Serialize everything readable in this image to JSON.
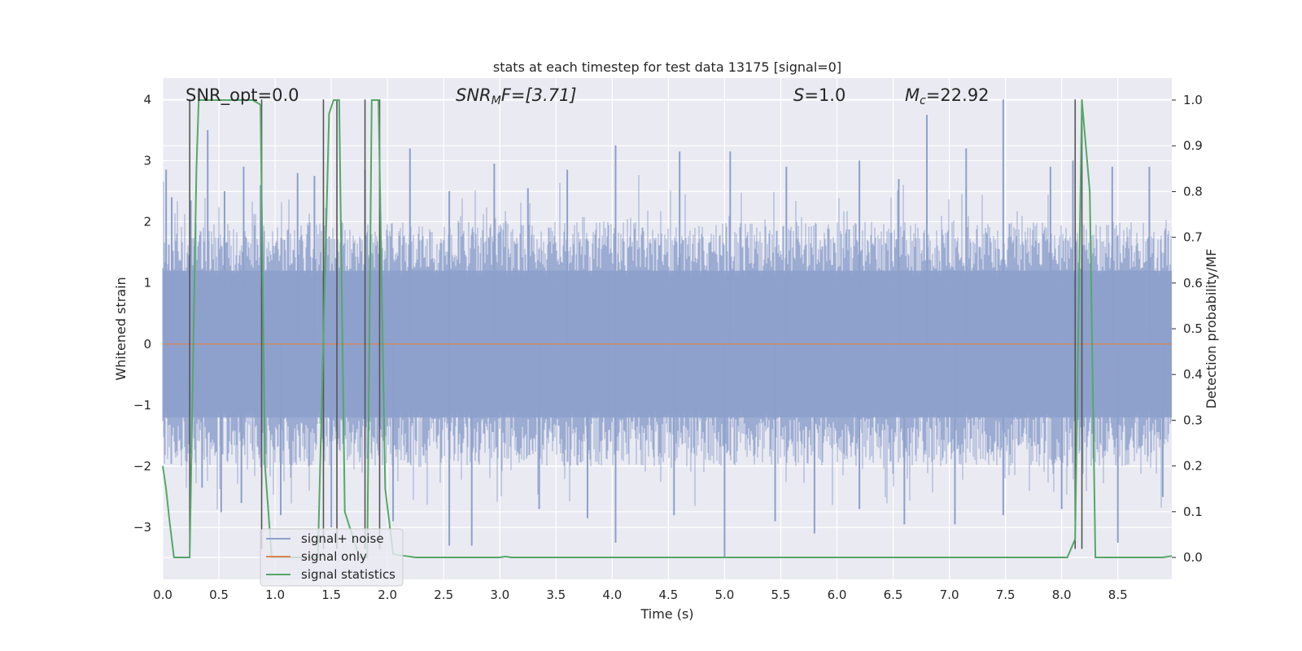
{
  "chart_data": {
    "type": "line",
    "title": "stats at each timestep for test data 13175 [signal=0]",
    "xlabel": "Time (s)",
    "ylabel": "Whitened strain",
    "ylabel_right": "Detection probability/MF",
    "xlim": [
      0.0,
      8.98
    ],
    "ylim": [
      -3.85,
      4.35
    ],
    "ylim_right": [
      -0.048,
      1.048
    ],
    "x_ticks": [
      "0.0",
      "0.5",
      "1.0",
      "1.5",
      "2.0",
      "2.5",
      "3.0",
      "3.5",
      "4.0",
      "4.5",
      "5.0",
      "5.5",
      "6.0",
      "6.5",
      "7.0",
      "7.5",
      "8.0",
      "8.5"
    ],
    "y_ticks": [
      "4",
      "3",
      "2",
      "1",
      "0",
      "−1",
      "−2",
      "−3"
    ],
    "y_ticks_right": [
      "1.0",
      "0.9",
      "0.8",
      "0.7",
      "0.6",
      "0.5",
      "0.4",
      "0.3",
      "0.2",
      "0.1",
      "0.0"
    ],
    "grid": true,
    "legend_placement": "lower-left",
    "annotations": {
      "snr_opt": "SNR_opt=0.0",
      "snr_mf_main": "SNR",
      "snr_mf_sub": "M",
      "snr_mf_rest": "F=[3.71]",
      "s_main": "S",
      "s_rest": "=1.0",
      "mc_main": "M",
      "mc_sub": "c",
      "mc_rest": "=22.92"
    },
    "series": [
      {
        "name": "signal+ noise",
        "color": "#8da0cb",
        "axis": "left",
        "description": "dense whitened noise trace, roughly +/-1.2 core band with spikes up to about 4 and down to about -3.5",
        "spikes": [
          {
            "x": 0.03,
            "y": 2.85
          },
          {
            "x": 0.08,
            "y": 2.4
          },
          {
            "x": 0.25,
            "y": 2.35
          },
          {
            "x": 0.4,
            "y": 3.5
          },
          {
            "x": 0.55,
            "y": 2.5
          },
          {
            "x": 0.72,
            "y": 2.9
          },
          {
            "x": 0.87,
            "y": 2.6
          },
          {
            "x": 1.2,
            "y": 2.8
          },
          {
            "x": 1.35,
            "y": 2.75
          },
          {
            "x": 1.8,
            "y": 2.85
          },
          {
            "x": 2.2,
            "y": 3.2
          },
          {
            "x": 2.55,
            "y": 2.5
          },
          {
            "x": 2.95,
            "y": 2.95
          },
          {
            "x": 3.25,
            "y": 2.55
          },
          {
            "x": 3.6,
            "y": 2.85
          },
          {
            "x": 4.03,
            "y": 3.25
          },
          {
            "x": 4.6,
            "y": 3.15
          },
          {
            "x": 5.05,
            "y": 3.15
          },
          {
            "x": 5.55,
            "y": 2.9
          },
          {
            "x": 6.2,
            "y": 3.0
          },
          {
            "x": 6.55,
            "y": 2.7
          },
          {
            "x": 6.8,
            "y": 3.75
          },
          {
            "x": 7.15,
            "y": 3.2
          },
          {
            "x": 7.48,
            "y": 4.0
          },
          {
            "x": 7.9,
            "y": 2.9
          },
          {
            "x": 8.1,
            "y": 3.0
          },
          {
            "x": 8.45,
            "y": 2.9
          },
          {
            "x": 8.78,
            "y": 2.9
          },
          {
            "x": 0.35,
            "y": -2.35
          },
          {
            "x": 0.52,
            "y": -2.75
          },
          {
            "x": 0.7,
            "y": -2.6
          },
          {
            "x": 1.05,
            "y": -2.8
          },
          {
            "x": 1.5,
            "y": -3.0
          },
          {
            "x": 2.05,
            "y": -2.9
          },
          {
            "x": 2.55,
            "y": -3.3
          },
          {
            "x": 2.75,
            "y": -3.3
          },
          {
            "x": 3.35,
            "y": -2.7
          },
          {
            "x": 3.78,
            "y": -2.85
          },
          {
            "x": 4.03,
            "y": -3.25
          },
          {
            "x": 4.55,
            "y": -2.8
          },
          {
            "x": 5.0,
            "y": -3.5
          },
          {
            "x": 5.45,
            "y": -2.9
          },
          {
            "x": 5.8,
            "y": -3.1
          },
          {
            "x": 6.2,
            "y": -2.7
          },
          {
            "x": 6.6,
            "y": -2.95
          },
          {
            "x": 7.05,
            "y": -2.95
          },
          {
            "x": 7.48,
            "y": -2.8
          },
          {
            "x": 8.0,
            "y": -2.7
          },
          {
            "x": 8.5,
            "y": -3.25
          },
          {
            "x": 8.9,
            "y": -2.5
          }
        ]
      },
      {
        "name": "signal only",
        "color": "#dd8452",
        "axis": "left",
        "x": [
          0.0,
          8.98
        ],
        "y": [
          0.0,
          0.0
        ]
      },
      {
        "name": "signal statistics",
        "color": "#55a868",
        "axis": "right",
        "x": [
          0.0,
          0.03,
          0.06,
          0.1,
          0.24,
          0.3,
          0.32,
          0.8,
          0.87,
          0.91,
          0.97,
          1.0,
          1.38,
          1.48,
          1.52,
          1.57,
          1.62,
          1.75,
          1.82,
          1.86,
          1.92,
          1.98,
          2.05,
          2.1,
          2.25,
          3.0,
          3.05,
          3.1,
          8.05,
          8.12,
          8.18,
          8.25,
          8.3,
          8.35,
          8.9,
          8.98
        ],
        "y": [
          0.2,
          0.15,
          0.08,
          0.0,
          0.0,
          0.85,
          1.0,
          1.0,
          0.99,
          0.2,
          0.0,
          0.0,
          0.0,
          0.97,
          1.0,
          1.0,
          0.1,
          0.0,
          0.0,
          1.0,
          1.0,
          0.15,
          0.008,
          0.005,
          0.0,
          0.0,
          0.002,
          0.0,
          0.0,
          0.04,
          1.0,
          0.8,
          0.0,
          0.0,
          0.0,
          0.003
        ]
      }
    ],
    "vertical_markers": {
      "color": "#555555",
      "x": [
        0.24,
        0.88,
        1.43,
        1.55,
        1.8,
        1.93,
        8.12,
        8.18
      ],
      "y_top": 4.0,
      "y_bottom": -3.35
    }
  }
}
